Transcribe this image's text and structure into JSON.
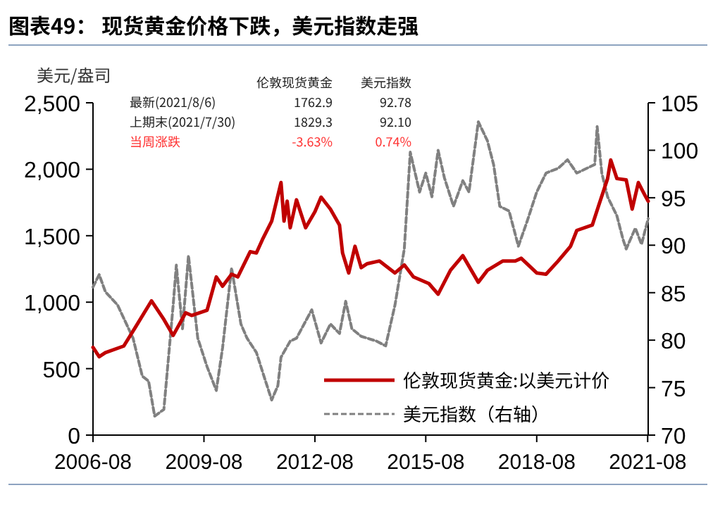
{
  "chart_data": {
    "type": "line",
    "title": "图表49：  现货黄金价格下跌，美元指数走强",
    "ylabel": "美元/盎司",
    "annotations": [
      "伦敦现货黄金",
      "美元指数",
      "最新(2021/8/6)",
      "1762.9",
      "92.78",
      "上期末(2021/7/30)",
      "1829.3",
      "92.10",
      "当周涨跌",
      "-3.63%",
      "0.74%"
    ],
    "xlim": [
      "2006-08-01",
      "2021-08-06"
    ],
    "xticks": [
      "2006-08",
      "2009-08",
      "2012-08",
      "2015-08",
      "2018-08",
      "2021-08"
    ],
    "ylim": [
      0,
      2500
    ],
    "yticks": [
      {
        "value": 0,
        "label": "0"
      },
      {
        "value": 500,
        "label": "500"
      },
      {
        "value": 1000,
        "label": "1,000"
      },
      {
        "value": 1500,
        "label": "1,500"
      },
      {
        "value": 2000,
        "label": "2,000"
      },
      {
        "value": 2500,
        "label": "2,500"
      }
    ],
    "y2lim": [
      70,
      105
    ],
    "y2ticks": [
      70,
      75,
      80,
      85,
      90,
      95,
      100,
      105
    ],
    "legend": "bottom right",
    "grid": false,
    "series": [
      {
        "name": "伦敦现货黄金:以美元计价",
        "color": "#c00000",
        "line_style": "solid",
        "x": [
          "2006-08",
          "2006-10",
          "2006-12",
          "2007-06",
          "2007-10",
          "2008-03",
          "2008-07",
          "2008-10",
          "2009-02",
          "2009-04",
          "2009-09",
          "2009-12",
          "2010-02",
          "2010-05",
          "2010-07",
          "2010-11",
          "2011-01",
          "2011-03",
          "2011-06",
          "2011-09",
          "2011-10",
          "2011-11",
          "2011-12",
          "2012-02",
          "2012-05",
          "2012-08",
          "2012-10",
          "2013-01",
          "2013-04",
          "2013-05",
          "2013-07",
          "2013-09",
          "2013-11",
          "2014-01",
          "2014-05",
          "2014-10",
          "2015-01",
          "2015-04",
          "2015-09",
          "2015-12",
          "2016-04",
          "2016-08",
          "2017-01",
          "2017-04",
          "2017-09",
          "2018-01",
          "2018-03",
          "2018-08",
          "2018-11",
          "2019-03",
          "2019-07",
          "2019-09",
          "2020-02",
          "2020-04",
          "2020-07",
          "2020-08",
          "2020-10",
          "2021-01",
          "2021-03",
          "2021-05",
          "2021-07",
          "2021-08-06"
        ],
        "values": [
          660,
          590,
          620,
          670,
          820,
          1010,
          870,
          750,
          920,
          900,
          940,
          1190,
          1120,
          1210,
          1190,
          1380,
          1370,
          1470,
          1610,
          1900,
          1610,
          1760,
          1560,
          1770,
          1560,
          1680,
          1790,
          1700,
          1580,
          1370,
          1220,
          1420,
          1260,
          1290,
          1310,
          1220,
          1280,
          1190,
          1140,
          1060,
          1240,
          1350,
          1150,
          1240,
          1310,
          1310,
          1330,
          1220,
          1210,
          1310,
          1420,
          1540,
          1580,
          1720,
          1930,
          2070,
          1930,
          1920,
          1700,
          1900,
          1810,
          1760
        ]
      },
      {
        "name": "美元指数（右轴）",
        "color": "#808080",
        "line_style": "dashed",
        "axis": "y2",
        "x": [
          "2006-08",
          "2006-10",
          "2006-12",
          "2007-04",
          "2007-09",
          "2007-12",
          "2008-02",
          "2008-04",
          "2008-07",
          "2008-10",
          "2008-11",
          "2009-01",
          "2009-03",
          "2009-06",
          "2009-09",
          "2009-12",
          "2010-02",
          "2010-05",
          "2010-08",
          "2010-10",
          "2011-01",
          "2011-04",
          "2011-06",
          "2011-08",
          "2011-09",
          "2011-12",
          "2012-02",
          "2012-07",
          "2012-10",
          "2013-01",
          "2013-04",
          "2013-06",
          "2013-08",
          "2013-11",
          "2014-04",
          "2014-07",
          "2014-10",
          "2015-01",
          "2015-03",
          "2015-06",
          "2015-08",
          "2015-10",
          "2015-12",
          "2016-02",
          "2016-05",
          "2016-08",
          "2016-10",
          "2017-01",
          "2017-04",
          "2017-06",
          "2017-08",
          "2017-11",
          "2018-02",
          "2018-05",
          "2018-08",
          "2018-11",
          "2019-03",
          "2019-06",
          "2019-09",
          "2020-02-25",
          "2020-03-20",
          "2020-05-05",
          "2020-07",
          "2020-10",
          "2020-12",
          "2021-01",
          "2021-04",
          "2021-06",
          "2021-08-06"
        ],
        "values": [
          85.6,
          86.9,
          85.1,
          83.7,
          80.2,
          76.2,
          75.7,
          72.0,
          72.7,
          83.7,
          87.9,
          81.2,
          88.9,
          80.2,
          77.2,
          74.7,
          79.2,
          87.6,
          81.7,
          80.2,
          78.7,
          75.7,
          73.7,
          75.2,
          78.2,
          79.9,
          80.2,
          83.2,
          79.7,
          81.7,
          80.7,
          84.1,
          81.2,
          80.4,
          79.9,
          79.4,
          83.7,
          89.6,
          99.8,
          95.6,
          97.6,
          95.1,
          100.0,
          97.1,
          94.1,
          96.8,
          95.6,
          103.0,
          101.0,
          98.5,
          94.1,
          93.6,
          89.9,
          92.6,
          95.6,
          97.6,
          98.1,
          99.0,
          97.6,
          98.5,
          102.5,
          97.6,
          95.1,
          93.1,
          90.6,
          89.6,
          91.8,
          90.1,
          92.8
        ]
      }
    ]
  }
}
